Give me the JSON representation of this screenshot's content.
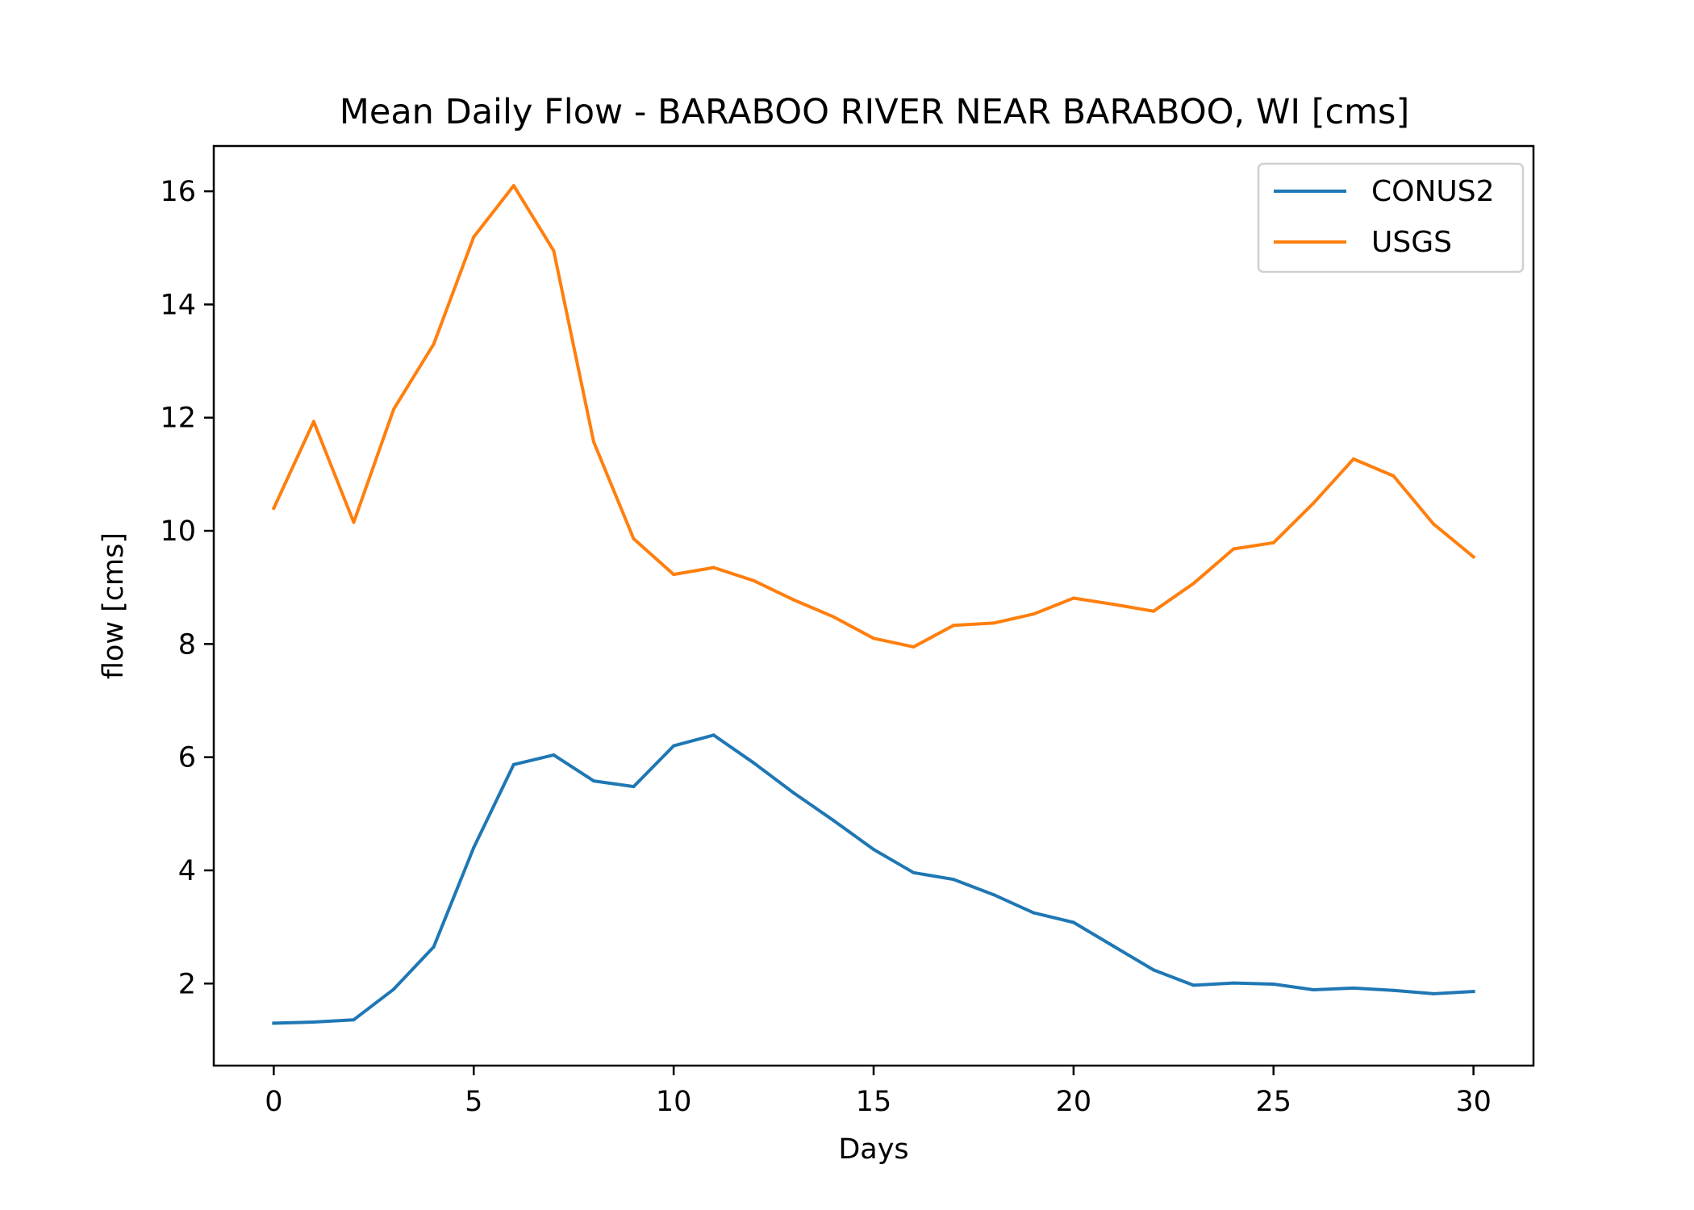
{
  "chart_data": {
    "type": "line",
    "title": "Mean Daily Flow - BARABOO RIVER NEAR BARABOO, WI [cms]",
    "xlabel": "Days",
    "ylabel": "flow [cms]",
    "xlim": [
      -1.5,
      31.5
    ],
    "ylim": [
      0.55,
      16.8
    ],
    "xticks": [
      0,
      5,
      10,
      15,
      20,
      25,
      30
    ],
    "yticks": [
      2,
      4,
      6,
      8,
      10,
      12,
      14,
      16
    ],
    "xtick_labels": [
      "0",
      "5",
      "10",
      "15",
      "20",
      "25",
      "30"
    ],
    "ytick_labels": [
      "2",
      "4",
      "6",
      "8",
      "10",
      "12",
      "14",
      "16"
    ],
    "grid": false,
    "legend_position": "top-right",
    "x": [
      0,
      1,
      2,
      3,
      4,
      5,
      6,
      7,
      8,
      9,
      10,
      11,
      12,
      13,
      14,
      15,
      16,
      17,
      18,
      19,
      20,
      21,
      22,
      23,
      24,
      25,
      26,
      27,
      28,
      29,
      30
    ],
    "series": [
      {
        "name": "CONUS2",
        "color": "#1f77b4",
        "values": [
          1.3,
          1.32,
          1.36,
          1.9,
          2.65,
          4.4,
          5.87,
          6.04,
          5.58,
          5.48,
          6.2,
          6.39,
          5.9,
          5.37,
          4.88,
          4.37,
          3.96,
          3.84,
          3.57,
          3.25,
          3.08,
          2.66,
          2.24,
          1.97,
          2.01,
          1.99,
          1.89,
          1.92,
          1.88,
          1.82,
          1.86
        ]
      },
      {
        "name": "USGS",
        "color": "#ff7f0e",
        "values": [
          10.4,
          11.93,
          10.15,
          12.15,
          13.3,
          15.19,
          16.1,
          14.95,
          11.57,
          9.86,
          9.23,
          9.35,
          9.12,
          8.78,
          8.48,
          8.1,
          7.95,
          8.33,
          8.37,
          8.53,
          8.81,
          8.7,
          8.58,
          9.07,
          9.68,
          9.79,
          10.49,
          11.27,
          10.97,
          10.12,
          9.54
        ]
      }
    ]
  }
}
